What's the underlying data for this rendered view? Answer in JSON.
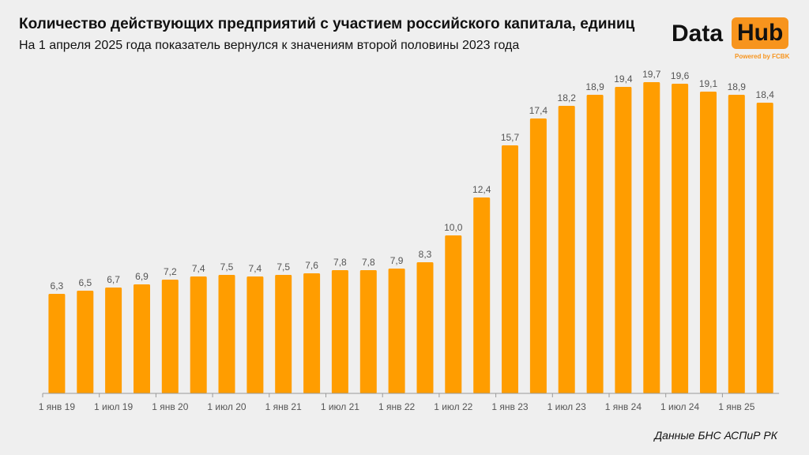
{
  "header": {
    "title": "Количество действующих предприятий с участием российского капитала, единиц",
    "subtitle": "На 1 апреля 2025 года показатель вернулся к значениям второй половины 2023 года"
  },
  "logo": {
    "word1": "Data",
    "word2": "Hub",
    "powered": "Powered by FCBK"
  },
  "source": "Данные БНС АСПиР РК",
  "colors": {
    "bar": "#ff9d00",
    "axis": "#9a9a9a",
    "label": "#555555"
  },
  "chart_data": {
    "type": "bar",
    "values": [
      6.3,
      6.5,
      6.7,
      6.9,
      7.2,
      7.4,
      7.5,
      7.4,
      7.5,
      7.6,
      7.8,
      7.8,
      7.9,
      8.3,
      10.0,
      12.4,
      15.7,
      17.4,
      18.2,
      18.9,
      19.4,
      19.7,
      19.6,
      19.1,
      18.9,
      18.4
    ],
    "value_labels": [
      "6,3",
      "6,5",
      "6,7",
      "6,9",
      "7,2",
      "7,4",
      "7,5",
      "7,4",
      "7,5",
      "7,6",
      "7,8",
      "7,8",
      "7,9",
      "8,3",
      "10,0",
      "12,4",
      "15,7",
      "17,4",
      "18,2",
      "18,9",
      "19,4",
      "19,7",
      "19,6",
      "19,1",
      "18,9",
      "18,4"
    ],
    "x_ticks": [
      {
        "index": 0,
        "label": "1 янв 19"
      },
      {
        "index": 2,
        "label": "1 июл 19"
      },
      {
        "index": 4,
        "label": "1 янв 20"
      },
      {
        "index": 6,
        "label": "1 июл 20"
      },
      {
        "index": 8,
        "label": "1 янв 21"
      },
      {
        "index": 10,
        "label": "1 июл 21"
      },
      {
        "index": 12,
        "label": "1 янв 22"
      },
      {
        "index": 14,
        "label": "1 июл 22"
      },
      {
        "index": 16,
        "label": "1 янв 23"
      },
      {
        "index": 18,
        "label": "1 июл 23"
      },
      {
        "index": 20,
        "label": "1 янв 24"
      },
      {
        "index": 22,
        "label": "1 июл 24"
      },
      {
        "index": 24,
        "label": "1 янв 25"
      }
    ],
    "ylim": [
      0,
      20
    ],
    "grid": false
  }
}
